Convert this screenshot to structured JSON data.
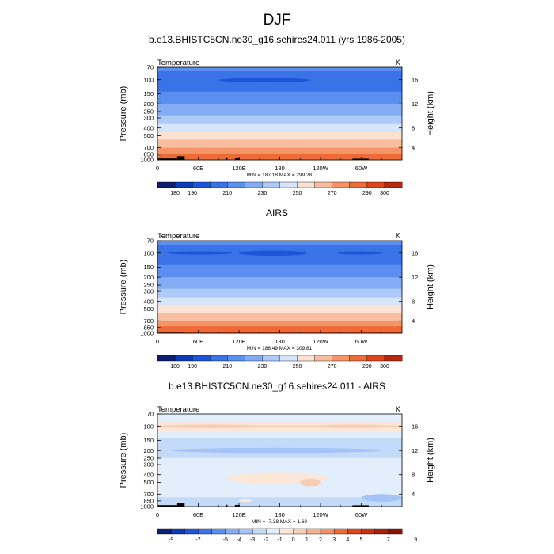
{
  "title": "DJF",
  "chart_data": [
    {
      "type": "heatmap",
      "title": "b.e13.BHISTC5CN.ne30_g16.sehires24.011 (yrs 1986-2005)",
      "variable": "Temperature",
      "units": "K",
      "ylabel": "Pressure (mb)",
      "ylabel_right": "Height (km)",
      "x_ticks": [
        "0",
        "60E",
        "120E",
        "180",
        "120W",
        "60W"
      ],
      "x_tick_values": [
        0,
        60,
        120,
        180,
        240,
        300
      ],
      "xlim": [
        0,
        360
      ],
      "y_ticks": [
        70,
        100,
        150,
        200,
        250,
        300,
        400,
        500,
        700,
        850,
        1000
      ],
      "ylim": [
        1000,
        70
      ],
      "y_scale": "log",
      "height_ticks": [
        16,
        12,
        8,
        4
      ],
      "stats": "MIN = 187.18  MAX = 299.28",
      "min": 187.18,
      "max": 299.28,
      "colorbar_levels": [
        180,
        190,
        200,
        210,
        220,
        230,
        240,
        250,
        260,
        270,
        280,
        290,
        300
      ],
      "colorbar_labels": [
        "180",
        "190",
        "210",
        "230",
        "250",
        "270",
        "290",
        "300"
      ],
      "colorbar_label_index": [
        0,
        1,
        3,
        5,
        7,
        9,
        11,
        12
      ],
      "colorbar_colors": [
        "#0a1e72",
        "#0d3bb8",
        "#1e55d8",
        "#3a72e8",
        "#5b8ff0",
        "#84acf5",
        "#aecbf8",
        "#d6e5fb",
        "#fbe2d3",
        "#f8bd9e",
        "#f59466",
        "#ee6a36",
        "#e0441a",
        "#b8280e"
      ],
      "profile": [
        {
          "p": 70,
          "t": 215
        },
        {
          "p": 100,
          "t": 200
        },
        {
          "p": 150,
          "t": 212
        },
        {
          "p": 200,
          "t": 220
        },
        {
          "p": 250,
          "t": 226
        },
        {
          "p": 300,
          "t": 233
        },
        {
          "p": 400,
          "t": 245
        },
        {
          "p": 500,
          "t": 255
        },
        {
          "p": 700,
          "t": 270
        },
        {
          "p": 850,
          "t": 281
        },
        {
          "p": 1000,
          "t": 289
        }
      ],
      "features": [
        {
          "lon": [
            90,
            225
          ],
          "p": [
            95,
            108
          ],
          "t": 190
        }
      ],
      "terrain": [
        {
          "lon": [
            1,
            32
          ],
          "p": 960
        },
        {
          "lon": [
            29,
            40
          ],
          "p": 900
        },
        {
          "lon": [
            101,
            103
          ],
          "p": 950
        },
        {
          "lon": [
            114,
            121
          ],
          "p": 955
        },
        {
          "lon": [
            287,
            311
          ],
          "p": 965
        }
      ]
    },
    {
      "type": "heatmap",
      "title": "AIRS",
      "variable": "Temperature",
      "units": "K",
      "ylabel": "Pressure (mb)",
      "ylabel_right": "Height (km)",
      "x_ticks": [
        "0",
        "60E",
        "120E",
        "180",
        "120W",
        "60W"
      ],
      "x_tick_values": [
        0,
        60,
        120,
        180,
        240,
        300
      ],
      "xlim": [
        0,
        360
      ],
      "y_ticks": [
        70,
        100,
        150,
        200,
        250,
        300,
        400,
        500,
        700,
        850,
        1000
      ],
      "ylim": [
        1000,
        70
      ],
      "y_scale": "log",
      "height_ticks": [
        16,
        12,
        8,
        4
      ],
      "stats": "MIN = 186.49  MAX = 309.81",
      "min": 186.49,
      "max": 309.81,
      "colorbar_levels": [
        180,
        190,
        200,
        210,
        220,
        230,
        240,
        250,
        260,
        270,
        280,
        290,
        300
      ],
      "colorbar_labels": [
        "180",
        "190",
        "210",
        "230",
        "250",
        "270",
        "290",
        "300"
      ],
      "colorbar_label_index": [
        0,
        1,
        3,
        5,
        7,
        9,
        11,
        12
      ],
      "colorbar_colors": [
        "#0a1e72",
        "#0d3bb8",
        "#1e55d8",
        "#3a72e8",
        "#5b8ff0",
        "#84acf5",
        "#aecbf8",
        "#d6e5fb",
        "#fbe2d3",
        "#f8bd9e",
        "#f59466",
        "#ee6a36",
        "#e0441a",
        "#b8280e"
      ],
      "profile": [
        {
          "p": 70,
          "t": 215
        },
        {
          "p": 100,
          "t": 200
        },
        {
          "p": 150,
          "t": 212
        },
        {
          "p": 200,
          "t": 220
        },
        {
          "p": 250,
          "t": 226
        },
        {
          "p": 300,
          "t": 233
        },
        {
          "p": 400,
          "t": 245
        },
        {
          "p": 500,
          "t": 255
        },
        {
          "p": 700,
          "t": 270
        },
        {
          "p": 850,
          "t": 282
        },
        {
          "p": 1000,
          "t": 292
        }
      ],
      "features": [
        {
          "lon": [
            15,
            110
          ],
          "p": [
            96,
            104
          ],
          "t": 190
        },
        {
          "lon": [
            120,
            220
          ],
          "p": [
            93,
            108
          ],
          "t": 190
        },
        {
          "lon": [
            265,
            330
          ],
          "p": [
            96,
            104
          ],
          "t": 190
        }
      ],
      "terrain": [
        {
          "lon": [
            5,
            40
          ],
          "p": 985
        }
      ]
    },
    {
      "type": "heatmap",
      "title": "b.e13.BHISTC5CN.ne30_g16.sehires24.011 - AIRS",
      "variable": "Temperature",
      "units": "K",
      "ylabel": "Pressure (mb)",
      "ylabel_right": "Height (km)",
      "x_ticks": [
        "0",
        "60E",
        "120E",
        "180",
        "120W",
        "60W"
      ],
      "x_tick_values": [
        0,
        60,
        120,
        180,
        240,
        300
      ],
      "xlim": [
        0,
        360
      ],
      "y_ticks": [
        70,
        100,
        150,
        200,
        250,
        300,
        400,
        500,
        700,
        850,
        1000
      ],
      "ylim": [
        1000,
        70
      ],
      "y_scale": "log",
      "height_ticks": [
        16,
        12,
        8,
        4
      ],
      "stats": "MIN = -7.38  MAX =  1.68",
      "min": -7.38,
      "max": 1.68,
      "colorbar_levels": [
        -9,
        -8,
        -7,
        -6,
        -5,
        -4,
        -3,
        -2,
        -1,
        0,
        1,
        2,
        3,
        4,
        5,
        6,
        7,
        8,
        9
      ],
      "colorbar_labels": [
        "-9",
        "-7",
        "-5",
        "-4",
        "-3",
        "-2",
        "-1",
        "0",
        "1",
        "2",
        "3",
        "4",
        "5",
        "7",
        "9"
      ],
      "colorbar_label_index": [
        0,
        2,
        4,
        5,
        6,
        7,
        8,
        9,
        10,
        11,
        12,
        13,
        14,
        16,
        18
      ],
      "colorbar_colors": [
        "#0a1e72",
        "#0d3bb8",
        "#1e55d8",
        "#3a72e8",
        "#5b8ff0",
        "#84acf5",
        "#a4c3f7",
        "#c4daf9",
        "#e3eefc",
        "#fbe6d8",
        "#f9cdb4",
        "#f6b08c",
        "#f38f63",
        "#ee6a36",
        "#e0441a",
        "#c9300f",
        "#a91f0a",
        "#8a1206"
      ],
      "profile": [
        {
          "p": 70,
          "t": -1.2
        },
        {
          "p": 85,
          "t": -1.5
        },
        {
          "p": 100,
          "t": 0.3
        },
        {
          "p": 120,
          "t": -1.4
        },
        {
          "p": 150,
          "t": -2.2
        },
        {
          "p": 200,
          "t": -2.6
        },
        {
          "p": 300,
          "t": -1.5
        },
        {
          "p": 500,
          "t": -1.8
        },
        {
          "p": 700,
          "t": -1.6
        },
        {
          "p": 850,
          "t": -2.4
        },
        {
          "p": 1000,
          "t": -2.0
        }
      ],
      "features": [
        {
          "lon": [
            5,
            160
          ],
          "p": [
            95,
            105
          ],
          "t": 0.6
        },
        {
          "lon": [
            230,
            345
          ],
          "p": [
            95,
            105
          ],
          "t": 0.6
        },
        {
          "lon": [
            20,
            330
          ],
          "p": [
            185,
            215
          ],
          "t": -3.2
        },
        {
          "lon": [
            100,
            250
          ],
          "p": [
            380,
            520
          ],
          "t": -0.8
        },
        {
          "lon": [
            210,
            240
          ],
          "p": [
            450,
            560
          ],
          "t": 0.2
        },
        {
          "lon": [
            120,
            140
          ],
          "p": [
            800,
            880
          ],
          "t": -0.8
        },
        {
          "lon": [
            300,
            360
          ],
          "p": [
            700,
            870
          ],
          "t": -3.2
        }
      ],
      "terrain": [
        {
          "lon": [
            1,
            32
          ],
          "p": 960
        },
        {
          "lon": [
            29,
            40
          ],
          "p": 900
        },
        {
          "lon": [
            101,
            103
          ],
          "p": 950
        },
        {
          "lon": [
            114,
            121
          ],
          "p": 955
        },
        {
          "lon": [
            287,
            311
          ],
          "p": 965
        }
      ]
    }
  ]
}
